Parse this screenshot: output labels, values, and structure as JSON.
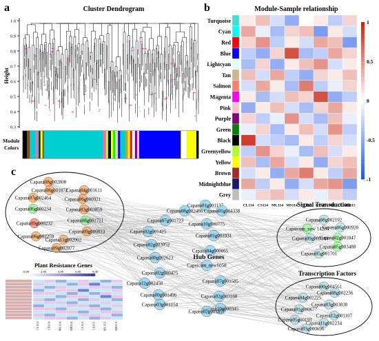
{
  "panels": {
    "a": "a",
    "b": "b",
    "c": "c"
  },
  "dendrogram": {
    "title": "Cluster Dendrogram",
    "ylabel": "Height",
    "y_ticks": [
      "1.0",
      "0.9",
      "0.8",
      "0.7",
      "0.6",
      "0.5",
      "0.4",
      "0.3"
    ],
    "module_colors_label_1": "Module",
    "module_colors_label_2": "Colors",
    "color_bar": [
      {
        "color": "#000000",
        "w": 3
      },
      {
        "color": "#8b4513",
        "w": 2
      },
      {
        "color": "#00ced1",
        "w": 4
      },
      {
        "color": "#ff69b4",
        "w": 1.5
      },
      {
        "color": "#00ced1",
        "w": 1
      },
      {
        "color": "#000000",
        "w": 1
      },
      {
        "color": "#ffff00",
        "w": 1.5
      },
      {
        "color": "#8b4513",
        "w": 1
      },
      {
        "color": "#00ced1",
        "w": 42
      },
      {
        "color": "#ff69b4",
        "w": 2
      },
      {
        "color": "#adff2f",
        "w": 1.5
      },
      {
        "color": "#000000",
        "w": 2
      },
      {
        "color": "#ffff00",
        "w": 1.5
      },
      {
        "color": "#00ff00",
        "w": 1.5
      },
      {
        "color": "#ffc0cb",
        "w": 2
      },
      {
        "color": "#0000ff",
        "w": 1.5
      },
      {
        "color": "#00ced1",
        "w": 4
      },
      {
        "color": "#ff8c00",
        "w": 1.5
      },
      {
        "color": "#ffff00",
        "w": 1.5
      },
      {
        "color": "#ff0000",
        "w": 1.5
      },
      {
        "color": "#e0ffff",
        "w": 2
      },
      {
        "color": "#800080",
        "w": 1.5
      },
      {
        "color": "#ffc0cb",
        "w": 1.5
      },
      {
        "color": "#0000ff",
        "w": 28
      },
      {
        "color": "#191970",
        "w": 1.5
      },
      {
        "color": "#ffffff",
        "w": 4
      },
      {
        "color": "#ffff00",
        "w": 7
      },
      {
        "color": "#000000",
        "w": 1.5
      }
    ]
  },
  "heatmap": {
    "title": "Module-Sample relationship",
    "rows": [
      "Turquoise",
      "Cyan",
      "Red",
      "Blue",
      "Lightcyan",
      "Tan",
      "Salmon",
      "Magenta",
      "Pink",
      "Purple",
      "Green",
      "Black",
      "Greenyellow",
      "Yellow",
      "Brown",
      "Midnightblue",
      "Grey"
    ],
    "row_colors": [
      "#40e0d0",
      "#00ffff",
      "#ff0000",
      "#0000ff",
      "#e0ffff",
      "#d2b48c",
      "#fa8072",
      "#ff00ff",
      "#ffc0cb",
      "#800080",
      "#008000",
      "#000000",
      "#adff2f",
      "#ffff00",
      "#a52a2a",
      "#191970",
      "#bebebe"
    ],
    "cols": [
      "CL114",
      "CS114",
      "ML114",
      "MS114",
      "CL115",
      "CS115",
      "ML115",
      "MS115"
    ],
    "values": [
      [
        0.1,
        0.3,
        -0.2,
        -0.5,
        0.0,
        0.1,
        -0.3,
        0.2
      ],
      [
        0.4,
        -0.1,
        -0.4,
        0.2,
        0.3,
        -0.6,
        0.1,
        -0.2
      ],
      [
        0.2,
        0.5,
        -0.3,
        0.1,
        -0.2,
        0.4,
        0.3,
        -0.6
      ],
      [
        -0.3,
        -0.5,
        0.2,
        0.8,
        -0.4,
        -0.3,
        0.4,
        0.2
      ],
      [
        -0.4,
        0.2,
        -0.5,
        0.1,
        0.3,
        0.5,
        -0.2,
        0.1
      ],
      [
        0.3,
        -0.2,
        0.4,
        -0.3,
        -0.5,
        0.2,
        0.1,
        0.3
      ],
      [
        -0.2,
        0.4,
        0.1,
        -0.4,
        0.6,
        -0.3,
        -0.1,
        0.2
      ],
      [
        0.1,
        -0.4,
        -0.2,
        0.3,
        0.2,
        0.8,
        -0.5,
        -0.3
      ],
      [
        -0.5,
        0.1,
        0.3,
        -0.2,
        -0.4,
        0.2,
        0.4,
        0.1
      ],
      [
        0.2,
        -0.3,
        -0.1,
        0.5,
        -0.2,
        -0.4,
        0.3,
        -0.1
      ],
      [
        -0.1,
        0.2,
        -0.4,
        0.1,
        0.3,
        -0.2,
        0.5,
        -0.3
      ],
      [
        0.9,
        -0.2,
        -0.3,
        -0.4,
        0.1,
        -0.3,
        0.2,
        -0.2
      ],
      [
        -0.3,
        0.5,
        0.2,
        -0.1,
        -0.4,
        0.3,
        -0.2,
        0.1
      ],
      [
        0.3,
        -0.4,
        0.4,
        -0.2,
        0.1,
        -0.5,
        0.2,
        0.3
      ],
      [
        -0.2,
        0.1,
        -0.5,
        0.4,
        0.6,
        0.1,
        -0.3,
        0.4
      ],
      [
        0.4,
        -0.3,
        0.1,
        -0.5,
        -0.2,
        0.4,
        0.5,
        -0.6
      ],
      [
        -0.1,
        0.2,
        0.3,
        -0.2,
        0.1,
        -0.1,
        0.2,
        -0.3
      ]
    ],
    "scale_ticks": [
      "1",
      "0.5",
      "0",
      "-0.5",
      "-1"
    ]
  },
  "network": {
    "labels": {
      "signal": "Signal Transduction",
      "hub": "Hub Genes",
      "tf": "Transcription Factors"
    },
    "resistance_nodes": [
      {
        "t": "Capana08g002800",
        "c": "#f4a460"
      },
      {
        "t": "Capana08g001072",
        "c": "#f4a460"
      },
      {
        "t": "Capana04g001611",
        "c": "#f4a460"
      },
      {
        "t": "Capana07g002464",
        "c": "#f4a460"
      },
      {
        "t": "Capana06g000921",
        "c": "#f4a460"
      },
      {
        "t": "Capana06g000234",
        "c": "#90ee90"
      },
      {
        "t": "Capana03g003859",
        "c": "#f4a460"
      },
      {
        "t": "Capana09g000232",
        "c": "#fa8072"
      },
      {
        "t": "Capana08g001721",
        "c": "#90ee90"
      },
      {
        "t": "Capana09g000823",
        "c": "#f4a460"
      },
      {
        "t": "Capana06g002259",
        "c": "#f4a460"
      },
      {
        "t": "Capana11g002002",
        "c": "#f4a460"
      },
      {
        "t": "Capana09g002077",
        "c": "#f4a460"
      }
    ],
    "hub_nodes": [
      "Capana01g001137",
      "Capana08g002486",
      "Capana01g004338",
      "Capana07g001723",
      "Capana02g001425",
      "Capana10g000775",
      "Capana02g003052",
      "Capana01g001931",
      "Capana04g000065",
      "Capana00g002623",
      "Capana02g000475",
      "Capana12g002450",
      "Capana00g001496",
      "Capana03g001154",
      "Capana10g000345",
      "Capana07g001585",
      "Capana02g003168",
      "Capana02g001857",
      "Capsicum_new6058"
    ],
    "signal_nodes": [
      "Capana08g002192",
      "Capsicum_new 14286",
      "Capana06g000920",
      "Capana02g001847",
      "Capana09g000144",
      "Capana05g003488",
      "Capana05g001701"
    ],
    "tf_nodes": [
      "Capana00g004561",
      "Capana08g002236",
      "Capana04g001225",
      "Capana03g003830",
      "Capana01g000677",
      "Capana12g001107",
      "Capana05g00193",
      "Capana11g002234",
      "Capana03g000696"
    ]
  },
  "resistance_heatmap": {
    "title": "Plant Resistance Genes",
    "scale_ticks": [
      "0.00",
      "2.00",
      "4.00",
      "6.00",
      "8.00"
    ],
    "cols": [
      "CL114",
      "CS114",
      "ML114",
      "MS114",
      "CL115",
      "CS115",
      "ML115",
      "MS115"
    ],
    "rows": [
      [
        1,
        2,
        3,
        1,
        2,
        1,
        3,
        2
      ],
      [
        2,
        1,
        1,
        3,
        2,
        4,
        1,
        1
      ],
      [
        1,
        3,
        2,
        1,
        1,
        2,
        2,
        3
      ],
      [
        3,
        1,
        2,
        2,
        4,
        1,
        1,
        2
      ],
      [
        2,
        2,
        1,
        3,
        1,
        3,
        2,
        1
      ],
      [
        1,
        1,
        3,
        2,
        2,
        1,
        4,
        2
      ],
      [
        2,
        3,
        1,
        1,
        3,
        2,
        1,
        3
      ],
      [
        1,
        2,
        2,
        3,
        1,
        1,
        2,
        1
      ],
      [
        3,
        1,
        1,
        2,
        2,
        3,
        1,
        2
      ],
      [
        2,
        2,
        3,
        1,
        1,
        2,
        3,
        1
      ],
      [
        1,
        1,
        2,
        2,
        3,
        1,
        2,
        2
      ],
      [
        2,
        3,
        1,
        1,
        2,
        2,
        1,
        3
      ],
      [
        1,
        2,
        2,
        3,
        1,
        3,
        2,
        1
      ]
    ]
  }
}
